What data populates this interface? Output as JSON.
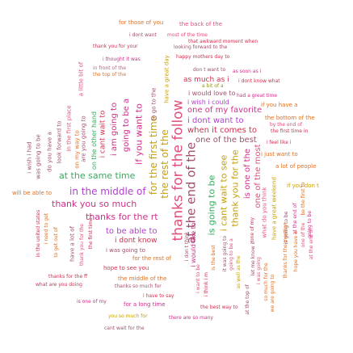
{
  "phrases": {
    "p01": "for those of you",
    "p02": "the back of the",
    "p03": "i dont want",
    "p04": "most of the time",
    "p05": "that awkward moment when",
    "p06": "thank you for your",
    "p07": "looking forward to the",
    "p08": "a little bit of",
    "p09": "i thought it was",
    "p10": "happy mothers day to",
    "p11": "in front of the",
    "p12": "the top of the",
    "p13": "don t want to",
    "p14": "as soon as i",
    "p15": "as much as i",
    "p16": "i dont know what",
    "p17": "at the end of",
    "p18": "a bit of a",
    "p19": "i would love to",
    "p20": "had a great time",
    "p21": "i wish i could",
    "p22": "if you have a",
    "p23": "one of my favorite",
    "p24": "the bottom of the",
    "p25": "i dont want to",
    "p26": "by the end of",
    "p27": "when it comes to",
    "p28": "the first time in",
    "p29": "one of the best",
    "p30": "i feel like i",
    "p31": "i just want to",
    "p32": "a lot of people",
    "p33": "at the same time",
    "p34": "if you don t",
    "p35": "will be able to",
    "p36": "in the middle of",
    "p37": "thank you so much",
    "p38": "thanks for the rt",
    "p39": "to be able to",
    "p40": "i dont know",
    "p41": "i was going to",
    "p42": "for the rest of",
    "p43": "hope to see you",
    "p44": "thanks for the ff",
    "p45": "the middle of the",
    "p46": "what are you doing",
    "p47": "thanks so much for",
    "p48": "i have to say",
    "p49": "is one of my",
    "p50": "for a long time",
    "p51": "the best way to",
    "p52": "you so much for",
    "p53": "there are so many",
    "p54": "cant wait for the",
    "p55": "thanks for the follow",
    "p56": "at the end of the",
    "p57": "for the first time",
    "p58": "the rest of the",
    "p59": "is going to be",
    "p60": "i cant wait to see",
    "p61": "thank you for the",
    "p62": "is one of the",
    "p63": "one of the most",
    "p64": "going to be a",
    "p65": "if you want to",
    "p66": "i am going to",
    "p67": "i cant wait to",
    "p68": "are you going to",
    "p69": "on the other hand",
    "p70": "on my way to",
    "p71": "in the first place",
    "p72": "look forward to",
    "p73": "do you have a",
    "p74": "i wish i had",
    "p75": "was going to be",
    "p76": "in the united states",
    "p77": "i need to get",
    "p78": "to get out of",
    "p79": "have a lot of",
    "p80": "have a great day",
    "p81": "to go to the",
    "p82": "i don t think",
    "p83": "i want to be",
    "p84": "i think i m",
    "p85": "is the best",
    "p86": "i would like to",
    "p87": "going to be a",
    "p88": "it was going to",
    "p89": "as well as the",
    "p90": "at the top of",
    "p91": "let me know if",
    "p92": "i was going",
    "p93": "one of my",
    "p94": "so much for the",
    "p95": "we are going to",
    "p96": "what do you think",
    "p97": "have a great weekend",
    "p98": "is going to be",
    "p99": "at the end of",
    "p100": "one of the",
    "p101": "be the first to",
    "p102": "thanks for the mention",
    "p103": "hope you have a",
    "p104": "thank you for the",
    "p105": "going to be",
    "p106": "the first time i"
  }
}
